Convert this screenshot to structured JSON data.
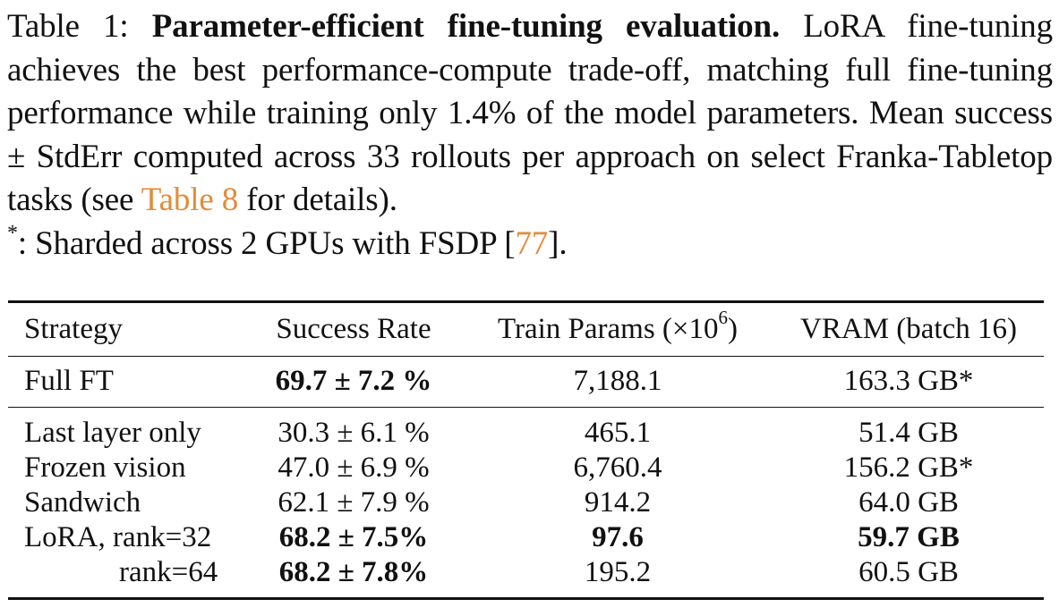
{
  "caption": {
    "prefix": "Table 1: ",
    "title": "Parameter-efficient fine-tuning evaluation.",
    "text1": " LoRA fine-tuning achieves the best performance-compute trade-off, matching full fine-tuning performance while training only 1.4% of the model parameters. Mean success ± StdErr computed across 33 rollouts per approach on select Franka-Tabletop tasks (see ",
    "ref_table": "Table 8",
    "text2": " for details).",
    "footnote_mark": "*",
    "footnote_text": ": Sharded across 2 GPUs with FSDP [",
    "ref_cite": "77",
    "footnote_end": "]."
  },
  "table": {
    "headers": {
      "strategy": "Strategy",
      "success": "Success Rate",
      "params_prefix": "Train Params (×10",
      "params_exp": "6",
      "params_suffix": ")",
      "vram": "VRAM (batch 16)"
    },
    "rows": [
      {
        "strategy": "Full FT",
        "success": "69.7 ± 7.2 %",
        "params": "7,188.1",
        "vram": "163.3 GB*"
      },
      {
        "strategy": "Last layer only",
        "success": "30.3 ± 6.1 %",
        "params": "465.1",
        "vram": "51.4 GB"
      },
      {
        "strategy": "Frozen vision",
        "success": "47.0 ± 6.9 %",
        "params": "6,760.4",
        "vram": "156.2 GB*"
      },
      {
        "strategy": "Sandwich",
        "success": "62.1 ± 7.9 %",
        "params": "914.2",
        "vram": "64.0 GB"
      },
      {
        "strategy": "LoRA, rank=32",
        "success": "68.2 ± 7.5%",
        "params": "97.6",
        "vram": "59.7 GB"
      },
      {
        "strategy": "rank=64",
        "success": "68.2 ± 7.8%",
        "params": "195.2",
        "vram": "60.5 GB"
      }
    ]
  },
  "colors": {
    "link": "#e58a3a",
    "text": "#111111"
  }
}
